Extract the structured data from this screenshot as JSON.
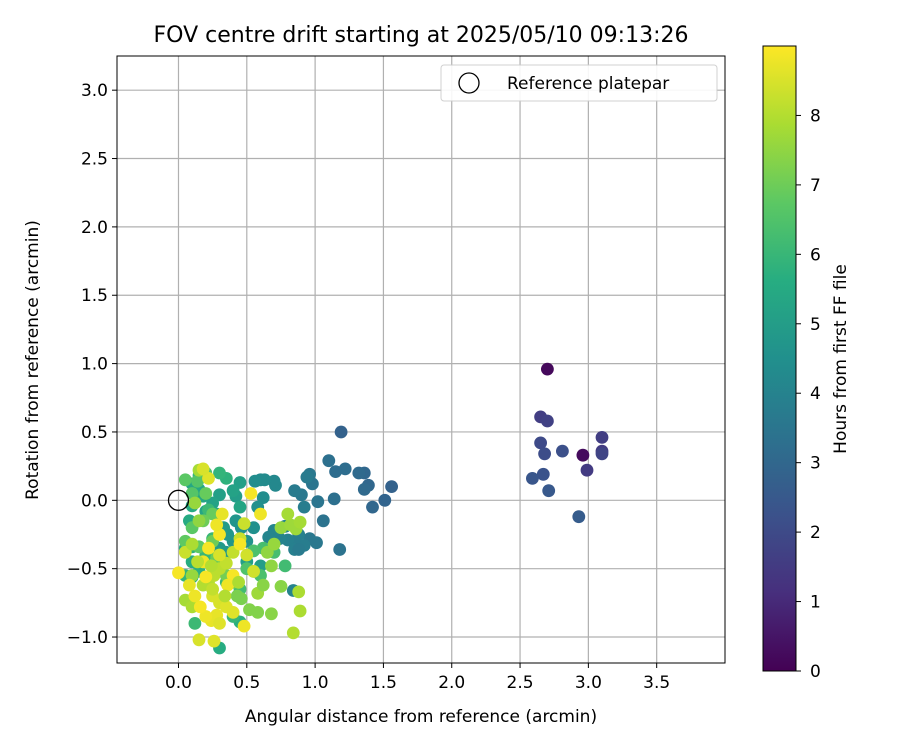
{
  "chart_data": {
    "type": "scatter",
    "title": "FOV centre drift starting at 2025/05/10 09:13:26",
    "xlabel": "Angular distance from reference (arcmin)",
    "ylabel": "Rotation from reference (arcmin)",
    "xlim": [
      -0.45,
      4.0
    ],
    "ylim": [
      -1.19,
      3.25
    ],
    "xticks": [
      0.0,
      0.5,
      1.0,
      1.5,
      2.0,
      2.5,
      3.0,
      3.5
    ],
    "xtick_labels": [
      "0.0",
      "0.5",
      "1.0",
      "1.5",
      "2.0",
      "2.5",
      "3.0",
      "3.5"
    ],
    "yticks": [
      -1.0,
      -0.5,
      0.0,
      0.5,
      1.0,
      1.5,
      2.0,
      2.5,
      3.0
    ],
    "ytick_labels": [
      "−1.0",
      "−0.5",
      "0.0",
      "0.5",
      "1.0",
      "1.5",
      "2.0",
      "2.5",
      "3.0"
    ],
    "grid": true,
    "legend": {
      "placement": "top-right",
      "entries": [
        "Reference platepar"
      ]
    },
    "colorbar": {
      "label": "Hours from first FF file",
      "colormap": "viridis",
      "range": [
        0,
        9.0
      ],
      "ticks": [
        0,
        1,
        2,
        3,
        4,
        5,
        6,
        7,
        8
      ],
      "tick_labels": [
        "0",
        "1",
        "2",
        "3",
        "4",
        "5",
        "6",
        "7",
        "8"
      ]
    },
    "reference_point": {
      "x": 0.0,
      "y": 0.0
    },
    "series": [
      {
        "points": [
          [
            2.7,
            0.96,
            0.2
          ],
          [
            2.96,
            0.33,
            0.25
          ],
          [
            2.65,
            0.61,
            1.6
          ],
          [
            2.7,
            0.58,
            1.7
          ],
          [
            3.1,
            0.46,
            1.6
          ],
          [
            3.1,
            0.36,
            1.5
          ],
          [
            3.1,
            0.34,
            1.8
          ],
          [
            2.99,
            0.22,
            1.5
          ],
          [
            2.81,
            0.36,
            2.2
          ],
          [
            2.65,
            0.42,
            2.0
          ],
          [
            2.68,
            0.34,
            2.1
          ],
          [
            2.67,
            0.19,
            2.3
          ],
          [
            2.59,
            0.16,
            2.4
          ],
          [
            2.71,
            0.07,
            2.5
          ],
          [
            2.93,
            -0.12,
            2.6
          ],
          [
            1.19,
            0.5,
            2.8
          ],
          [
            1.56,
            0.1,
            2.8
          ],
          [
            1.51,
            0.0,
            2.9
          ],
          [
            1.42,
            -0.05,
            3.0
          ],
          [
            1.39,
            0.11,
            3.0
          ],
          [
            1.36,
            0.2,
            3.0
          ],
          [
            1.32,
            0.2,
            3.1
          ],
          [
            1.36,
            0.08,
            3.1
          ],
          [
            1.22,
            0.23,
            3.2
          ],
          [
            1.15,
            0.21,
            3.2
          ],
          [
            1.1,
            0.29,
            3.3
          ],
          [
            1.14,
            0.01,
            3.3
          ],
          [
            1.18,
            -0.36,
            3.4
          ],
          [
            1.06,
            -0.15,
            3.4
          ],
          [
            1.02,
            -0.01,
            3.5
          ],
          [
            0.98,
            0.12,
            3.5
          ],
          [
            1.01,
            -0.31,
            3.6
          ],
          [
            0.96,
            0.19,
            3.6
          ],
          [
            0.94,
            0.17,
            3.7
          ],
          [
            0.9,
            0.04,
            3.6
          ],
          [
            0.85,
            0.07,
            3.7
          ],
          [
            0.92,
            -0.05,
            3.8
          ],
          [
            0.96,
            -0.28,
            3.6
          ],
          [
            0.92,
            -0.33,
            3.8
          ],
          [
            0.88,
            -0.25,
            3.9
          ],
          [
            0.85,
            -0.3,
            3.8
          ],
          [
            0.8,
            -0.29,
            3.9
          ],
          [
            0.85,
            -0.36,
            3.9
          ],
          [
            0.88,
            -0.36,
            3.7
          ],
          [
            0.78,
            -0.19,
            4.0
          ],
          [
            0.74,
            -0.28,
            4.0
          ],
          [
            0.7,
            -0.22,
            4.1
          ],
          [
            0.66,
            -0.27,
            4.1
          ],
          [
            0.71,
            0.11,
            4.2
          ],
          [
            0.7,
            0.14,
            4.2
          ],
          [
            0.63,
            0.15,
            4.3
          ],
          [
            0.6,
            0.15,
            4.3
          ],
          [
            0.56,
            0.14,
            4.4
          ],
          [
            0.62,
            0.02,
            4.4
          ],
          [
            0.58,
            -0.05,
            4.5
          ],
          [
            0.55,
            -0.2,
            4.5
          ],
          [
            0.5,
            -0.3,
            4.6
          ],
          [
            0.46,
            -0.2,
            4.6
          ],
          [
            0.42,
            -0.15,
            4.7
          ],
          [
            0.4,
            -0.3,
            4.7
          ],
          [
            0.36,
            -0.25,
            4.8
          ],
          [
            0.35,
            -0.38,
            4.8
          ],
          [
            0.33,
            -0.2,
            4.9
          ],
          [
            0.3,
            -0.35,
            4.9
          ],
          [
            0.32,
            -0.45,
            5.0
          ],
          [
            0.6,
            -0.48,
            5.0
          ],
          [
            0.5,
            -0.45,
            5.1
          ],
          [
            0.3,
            0.04,
            5.1
          ],
          [
            0.28,
            -0.1,
            5.2
          ],
          [
            0.25,
            -0.02,
            5.2
          ],
          [
            0.2,
            -0.08,
            5.3
          ],
          [
            0.18,
            0.03,
            5.3
          ],
          [
            0.15,
            0.08,
            5.4
          ],
          [
            0.1,
            0.12,
            5.4
          ],
          [
            0.1,
            -0.04,
            5.5
          ],
          [
            0.08,
            -0.15,
            5.5
          ],
          [
            0.05,
            -0.35,
            5.6
          ],
          [
            0.1,
            -0.45,
            5.6
          ],
          [
            0.15,
            -0.52,
            5.7
          ],
          [
            0.42,
            0.03,
            5.0
          ],
          [
            0.45,
            0.13,
            5.1
          ],
          [
            0.4,
            0.07,
            5.2
          ],
          [
            0.45,
            -0.05,
            5.3
          ],
          [
            0.35,
            0.16,
            5.8
          ],
          [
            0.3,
            0.2,
            5.9
          ],
          [
            0.15,
            0.18,
            5.9
          ],
          [
            0.1,
            -0.34,
            5.8
          ],
          [
            0.05,
            -0.55,
            5.9
          ],
          [
            0.1,
            -0.56,
            5.7
          ],
          [
            0.2,
            -0.4,
            6.0
          ],
          [
            0.25,
            -0.28,
            6.0
          ],
          [
            0.3,
            -1.08,
            5.6
          ],
          [
            0.45,
            -0.89,
            5.7
          ],
          [
            0.4,
            -0.85,
            6.0
          ],
          [
            0.12,
            -0.9,
            6.1
          ],
          [
            0.84,
            -0.66,
            4.0
          ],
          [
            0.22,
            -0.07,
            6.1
          ],
          [
            0.35,
            -0.6,
            6.1
          ],
          [
            0.45,
            -0.65,
            6.2
          ],
          [
            0.78,
            -0.48,
            6.2
          ],
          [
            0.7,
            -0.38,
            6.3
          ],
          [
            0.62,
            -0.35,
            6.3
          ],
          [
            0.55,
            -0.37,
            6.4
          ],
          [
            0.6,
            -0.55,
            6.4
          ],
          [
            0.55,
            -0.52,
            6.5
          ],
          [
            0.5,
            -0.5,
            6.5
          ],
          [
            0.2,
            0.2,
            6.5
          ],
          [
            0.14,
            0.14,
            6.6
          ],
          [
            0.1,
            0.05,
            6.6
          ],
          [
            0.05,
            0.15,
            6.7
          ],
          [
            0.1,
            -0.2,
            6.7
          ],
          [
            0.05,
            -0.3,
            6.8
          ],
          [
            0.15,
            -0.34,
            6.8
          ],
          [
            0.2,
            0.05,
            6.9
          ],
          [
            0.25,
            -0.1,
            6.9
          ],
          [
            0.18,
            -0.15,
            7.0
          ],
          [
            0.25,
            -0.3,
            7.0
          ],
          [
            0.28,
            -0.42,
            7.0
          ],
          [
            0.35,
            -0.55,
            7.1
          ],
          [
            0.4,
            -0.6,
            7.1
          ],
          [
            0.43,
            -0.7,
            7.2
          ],
          [
            0.46,
            -0.72,
            7.2
          ],
          [
            0.52,
            -0.8,
            7.3
          ],
          [
            0.58,
            -0.82,
            7.3
          ],
          [
            0.68,
            -0.83,
            7.4
          ],
          [
            0.75,
            -0.63,
            7.4
          ],
          [
            0.68,
            -0.48,
            7.5
          ],
          [
            0.65,
            -0.38,
            7.5
          ],
          [
            0.7,
            -0.32,
            7.6
          ],
          [
            0.75,
            -0.2,
            7.6
          ],
          [
            0.82,
            -0.18,
            7.7
          ],
          [
            0.86,
            -0.21,
            7.7
          ],
          [
            0.89,
            -0.16,
            7.8
          ],
          [
            0.8,
            -0.1,
            7.8
          ],
          [
            0.88,
            -0.67,
            7.9
          ],
          [
            0.89,
            -0.81,
            7.9
          ],
          [
            0.84,
            -0.97,
            8.0
          ],
          [
            0.05,
            -0.73,
            7.8
          ],
          [
            0.1,
            -0.78,
            7.9
          ],
          [
            0.15,
            -0.15,
            7.5
          ],
          [
            0.12,
            -0.02,
            7.6
          ],
          [
            0.15,
            0.22,
            7.8
          ],
          [
            0.1,
            -0.55,
            7.6
          ],
          [
            0.18,
            -0.62,
            8.0
          ],
          [
            0.22,
            -0.6,
            8.0
          ],
          [
            0.26,
            -0.55,
            8.1
          ],
          [
            0.3,
            -0.5,
            8.1
          ],
          [
            0.35,
            -0.46,
            8.2
          ],
          [
            0.4,
            -0.38,
            8.2
          ],
          [
            0.45,
            -0.28,
            8.3
          ],
          [
            0.48,
            -0.17,
            8.3
          ],
          [
            0.5,
            -0.4,
            8.4
          ],
          [
            0.55,
            -0.52,
            8.4
          ],
          [
            0.25,
            -0.7,
            8.5
          ],
          [
            0.3,
            -0.75,
            8.5
          ],
          [
            0.35,
            -0.78,
            8.6
          ],
          [
            0.4,
            -0.82,
            8.6
          ],
          [
            0.28,
            -0.84,
            8.7
          ],
          [
            0.24,
            -0.88,
            8.7
          ],
          [
            0.15,
            -1.02,
            8.5
          ],
          [
            0.26,
            -1.03,
            8.6
          ],
          [
            0.48,
            -0.92,
            8.8
          ],
          [
            0.3,
            -0.9,
            8.6
          ],
          [
            0.2,
            -0.85,
            8.8
          ],
          [
            0.16,
            -0.78,
            8.9
          ],
          [
            0.12,
            -0.7,
            8.8
          ],
          [
            0.08,
            -0.62,
            8.7
          ],
          [
            0.18,
            -0.45,
            8.8
          ],
          [
            0.22,
            -0.35,
            8.9
          ],
          [
            0.3,
            -0.25,
            8.9
          ],
          [
            0.28,
            -0.18,
            8.8
          ],
          [
            0.32,
            -0.1,
            8.7
          ],
          [
            0.22,
            0.16,
            8.6
          ],
          [
            0.18,
            0.23,
            8.5
          ],
          [
            0.53,
            0.05,
            8.9
          ],
          [
            0.6,
            -0.1,
            8.8
          ],
          [
            0.45,
            -0.32,
            8.9
          ],
          [
            0.4,
            -0.55,
            8.9
          ],
          [
            0.36,
            -0.62,
            8.8
          ],
          [
            0.2,
            -0.56,
            8.9
          ],
          [
            0.0,
            -0.53,
            8.9
          ],
          [
            0.05,
            -0.38,
            8.3
          ],
          [
            0.25,
            -0.65,
            8.2
          ],
          [
            0.34,
            -0.7,
            8.0
          ],
          [
            0.44,
            -0.6,
            7.9
          ],
          [
            0.58,
            -0.68,
            7.7
          ],
          [
            0.62,
            -0.62,
            7.4
          ],
          [
            0.24,
            -0.48,
            8.0
          ],
          [
            0.14,
            -0.45,
            8.1
          ],
          [
            0.1,
            -0.32,
            7.9
          ],
          [
            0.3,
            -0.4,
            8.5
          ]
        ]
      }
    ]
  }
}
